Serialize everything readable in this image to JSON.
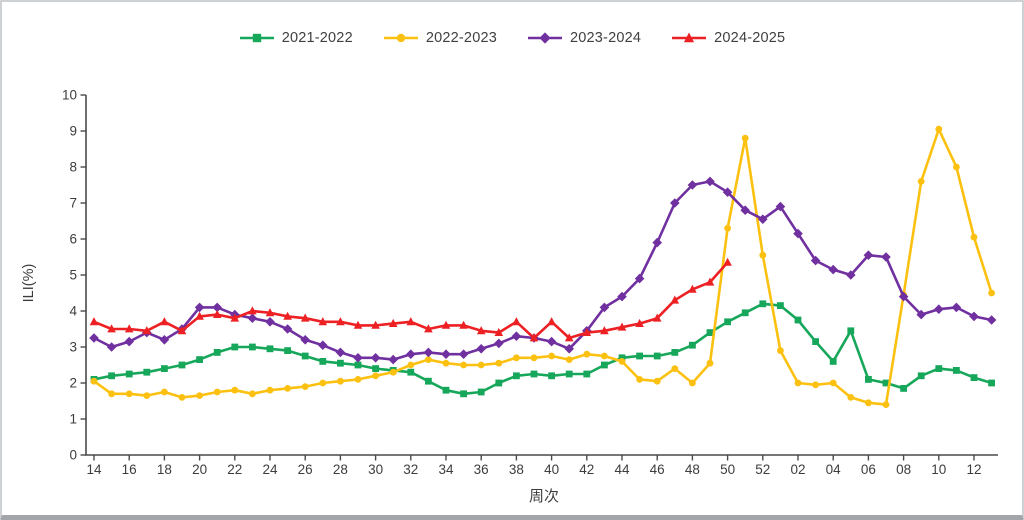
{
  "frame": {
    "background": "#ffffff",
    "border_color": "#cdd1d4",
    "bottom_edge_color": "#a2a6aa"
  },
  "legend": {
    "position": "top-center",
    "items": [
      {
        "label": "2021-2022",
        "color": "#17a75b",
        "marker": "square"
      },
      {
        "label": "2022-2023",
        "color": "#fcc110",
        "marker": "circle"
      },
      {
        "label": "2023-2024",
        "color": "#7030a0",
        "marker": "diamond"
      },
      {
        "label": "2024-2025",
        "color": "#ed2024",
        "marker": "triangle"
      }
    ]
  },
  "axis": {
    "line_color": "#4a4a4a",
    "tick_label_color": "#3d3d3d",
    "xlabel": "周次",
    "ylabel": "ILI(%)"
  },
  "chart_data": {
    "type": "line",
    "title": "",
    "xlabel": "周次",
    "ylabel": "ILI(%)",
    "ylim": [
      0,
      10
    ],
    "grid": false,
    "legend_position": "top-center",
    "y_ticks": [
      0,
      1,
      2,
      3,
      4,
      5,
      6,
      7,
      8,
      9,
      10
    ],
    "x_categories": [
      "14",
      "15",
      "16",
      "17",
      "18",
      "19",
      "20",
      "21",
      "22",
      "23",
      "24",
      "25",
      "26",
      "27",
      "28",
      "29",
      "30",
      "31",
      "32",
      "33",
      "34",
      "35",
      "36",
      "37",
      "38",
      "39",
      "40",
      "41",
      "42",
      "43",
      "44",
      "45",
      "46",
      "47",
      "48",
      "49",
      "50",
      "51",
      "52",
      "01",
      "02",
      "03",
      "04",
      "05",
      "06",
      "07",
      "08",
      "09",
      "10",
      "11",
      "12",
      "13"
    ],
    "x_tick_labels": [
      "14",
      "16",
      "18",
      "20",
      "22",
      "24",
      "26",
      "28",
      "30",
      "32",
      "34",
      "36",
      "38",
      "40",
      "42",
      "44",
      "46",
      "48",
      "50",
      "52",
      "02",
      "04",
      "06",
      "08",
      "10",
      "12"
    ],
    "series": [
      {
        "name": "2021-2022",
        "color": "#17a75b",
        "marker": "square",
        "values": [
          2.1,
          2.2,
          2.25,
          2.3,
          2.4,
          2.5,
          2.65,
          2.85,
          3.0,
          3.0,
          2.95,
          2.9,
          2.75,
          2.6,
          2.55,
          2.5,
          2.4,
          2.35,
          2.3,
          2.05,
          1.8,
          1.7,
          1.75,
          2.0,
          2.2,
          2.25,
          2.2,
          2.25,
          2.25,
          2.5,
          2.7,
          2.75,
          2.75,
          2.85,
          3.05,
          3.4,
          3.7,
          3.95,
          4.2,
          4.15,
          3.75,
          3.15,
          2.6,
          3.45,
          2.1,
          2.0,
          1.85,
          2.2,
          2.4,
          2.35,
          2.15,
          2.0
        ]
      },
      {
        "name": "2022-2023",
        "color": "#fcc110",
        "marker": "circle",
        "values": [
          2.05,
          1.7,
          1.7,
          1.65,
          1.75,
          1.6,
          1.65,
          1.75,
          1.8,
          1.7,
          1.8,
          1.85,
          1.9,
          2.0,
          2.05,
          2.1,
          2.2,
          2.3,
          2.5,
          2.65,
          2.55,
          2.5,
          2.5,
          2.55,
          2.7,
          2.7,
          2.75,
          2.65,
          2.8,
          2.75,
          2.6,
          2.1,
          2.05,
          2.4,
          2.0,
          2.55,
          6.3,
          8.8,
          5.55,
          2.9,
          2.0,
          1.95,
          2.0,
          1.6,
          1.45,
          1.4,
          4.45,
          7.6,
          9.05,
          8.0,
          6.05,
          4.5
        ]
      },
      {
        "name": "2023-2024",
        "color": "#7030a0",
        "marker": "diamond",
        "values": [
          3.25,
          3.0,
          3.15,
          3.4,
          3.2,
          3.5,
          4.1,
          4.1,
          3.9,
          3.8,
          3.7,
          3.5,
          3.2,
          3.05,
          2.85,
          2.7,
          2.7,
          2.65,
          2.8,
          2.85,
          2.8,
          2.8,
          2.95,
          3.1,
          3.3,
          3.25,
          3.15,
          2.95,
          3.45,
          4.1,
          4.4,
          4.9,
          5.9,
          7.0,
          7.5,
          7.6,
          7.3,
          6.8,
          6.55,
          6.9,
          6.15,
          5.4,
          5.15,
          5.0,
          5.55,
          5.5,
          4.4,
          3.9,
          4.05,
          4.1,
          3.85,
          3.75
        ]
      },
      {
        "name": "2024-2025",
        "color": "#ed2024",
        "marker": "triangle",
        "values": [
          3.7,
          3.5,
          3.5,
          3.45,
          3.7,
          3.45,
          3.85,
          3.9,
          3.8,
          4.0,
          3.95,
          3.85,
          3.8,
          3.7,
          3.7,
          3.6,
          3.6,
          3.65,
          3.7,
          3.5,
          3.6,
          3.6,
          3.45,
          3.4,
          3.7,
          3.25,
          3.7,
          3.25,
          3.4,
          3.45,
          3.55,
          3.65,
          3.8,
          4.3,
          4.6,
          4.8,
          5.35,
          null,
          null,
          null,
          null,
          null,
          null,
          null,
          null,
          null,
          null,
          null,
          null,
          null,
          null,
          null
        ]
      }
    ]
  }
}
